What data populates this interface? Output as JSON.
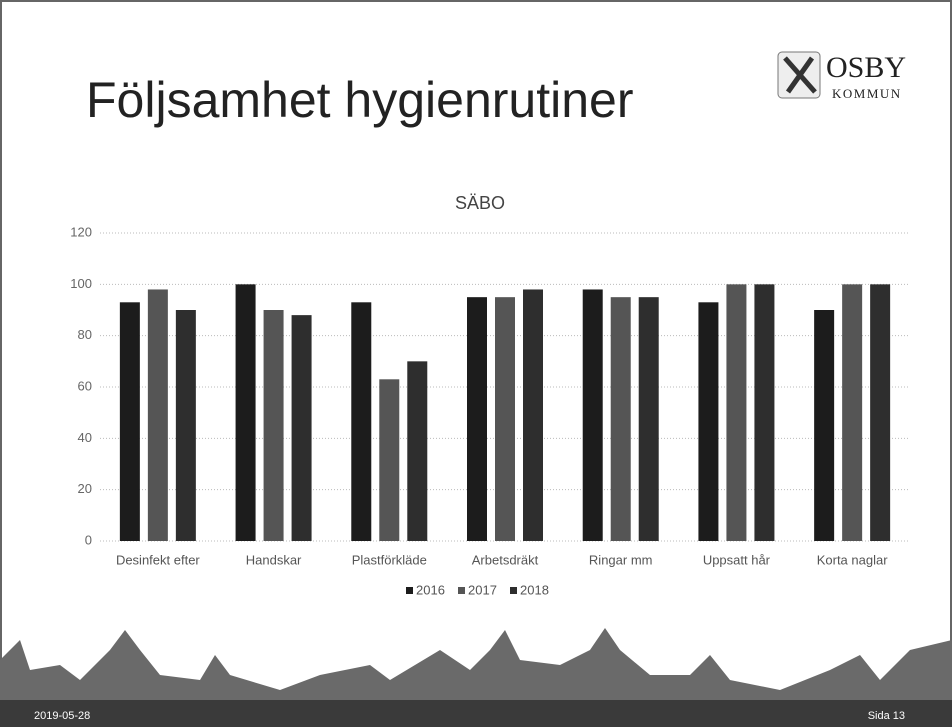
{
  "slide": {
    "title": "Följsamhet hygienrutiner",
    "logo_name": "OSBY",
    "logo_sub": "KOMMUN",
    "date": "2019-05-28",
    "page": "Sida 13"
  },
  "chart_data": {
    "type": "bar",
    "title": "SÄBO",
    "categories": [
      "Desinfekt efter",
      "Handskar",
      "Plastförkläde",
      "Arbetsdräkt",
      "Ringar mm",
      "Uppsatt hår",
      "Korta naglar"
    ],
    "series": [
      {
        "name": "2016",
        "color": "#1c1c1c",
        "values": [
          93,
          100,
          93,
          95,
          98,
          93,
          90
        ]
      },
      {
        "name": "2017",
        "color": "#555555",
        "values": [
          98,
          90,
          63,
          95,
          95,
          100,
          100
        ]
      },
      {
        "name": "2018",
        "color": "#2e2e2e",
        "values": [
          90,
          88,
          70,
          98,
          95,
          100,
          100
        ]
      }
    ],
    "ylim": [
      0,
      120
    ],
    "yticks": [
      0,
      20,
      40,
      60,
      80,
      100,
      120
    ],
    "grid": true,
    "legend": "bottom"
  }
}
